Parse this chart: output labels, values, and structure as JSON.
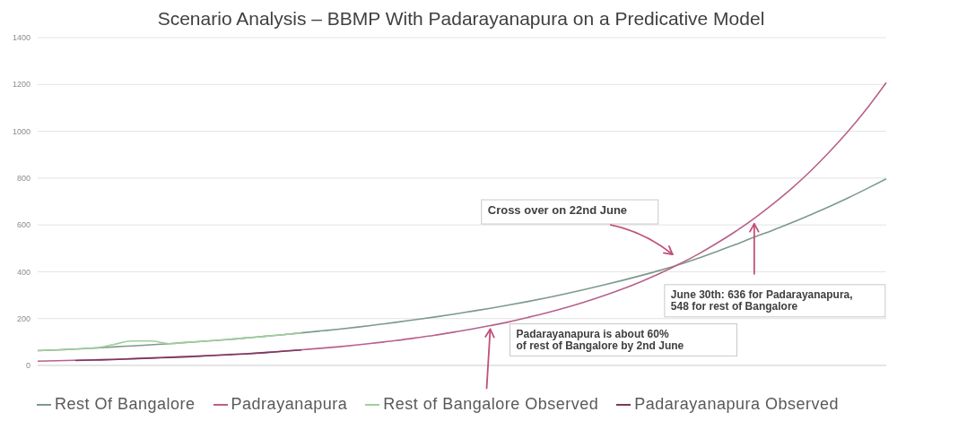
{
  "chart_data": {
    "type": "line",
    "title": "Scenario Analysis – BBMP With Padarayanapura on a Predicative Model",
    "categories": [
      null,
      null,
      null,
      null,
      null,
      null,
      null,
      null,
      null,
      null,
      null,
      null,
      null,
      null,
      null,
      null,
      null,
      null,
      null,
      null,
      null,
      null,
      null,
      null,
      null,
      null,
      null,
      null,
      null,
      null,
      null,
      null,
      null,
      null,
      null,
      null,
      null,
      null,
      null,
      null,
      null,
      null,
      null,
      null,
      null,
      null
    ],
    "series": [
      {
        "name": "Rest Of Bangalore",
        "color": "#7c9a8c",
        "values": [
          63,
          66,
          70,
          74,
          79,
          83,
          88,
          93,
          99,
          104,
          110,
          117,
          124,
          131,
          139,
          147,
          155,
          164,
          174,
          184,
          195,
          206,
          218,
          231,
          244,
          258,
          273,
          289,
          306,
          324,
          343,
          363,
          384,
          406,
          430,
          457,
          486,
          516,
          548,
          578,
          610,
          644,
          679,
          716,
          756,
          797
        ]
      },
      {
        "name": "Padrayanapura",
        "color": "#b8608a",
        "values": [
          18,
          20,
          22,
          24,
          26,
          29,
          32,
          35,
          38,
          42,
          46,
          50,
          55,
          61,
          67,
          73,
          80,
          88,
          97,
          106,
          117,
          128,
          141,
          155,
          170,
          186,
          205,
          225,
          247,
          271,
          297,
          326,
          358,
          393,
          432,
          474,
          521,
          572,
          628,
          690,
          757,
          831,
          913,
          1002,
          1100,
          1208
        ]
      },
      {
        "name": "Rest of Bangalore Observed",
        "color": "#9fcf9a",
        "values": [
          63,
          66,
          70,
          74,
          89,
          104,
          104,
          93,
          99,
          104,
          110,
          117,
          124,
          131,
          139,
          null,
          null,
          null,
          null,
          null,
          null,
          null,
          null,
          null,
          null,
          null,
          null,
          null,
          null,
          null,
          null,
          null,
          null,
          null,
          null,
          null,
          null,
          null,
          null,
          null,
          null,
          null,
          null,
          null,
          null,
          null
        ]
      },
      {
        "name": "Padarayanapura Observed",
        "color": "#7a3a5c",
        "values": [
          null,
          null,
          21,
          23,
          25,
          28,
          31,
          34,
          37,
          41,
          45,
          49,
          54,
          60,
          66,
          null,
          null,
          null,
          null,
          null,
          null,
          null,
          null,
          null,
          null,
          null,
          null,
          null,
          null,
          null,
          null,
          null,
          null,
          null,
          null,
          null,
          null,
          null,
          null,
          null,
          null,
          null,
          null,
          null,
          null,
          null
        ]
      }
    ],
    "ylim": [
      0,
      1400
    ],
    "yticks": [
      0,
      200,
      400,
      600,
      800,
      1000,
      1200,
      1400
    ],
    "grid": "y",
    "legend": "bottom",
    "annotations": [
      "Cross over on 22nd June",
      "June 30th: 636 for Padarayanapura,\n548 for rest of Bangalore",
      "Padarayanapura is about 60%\nof rest of Bangalore by 2nd June"
    ]
  }
}
